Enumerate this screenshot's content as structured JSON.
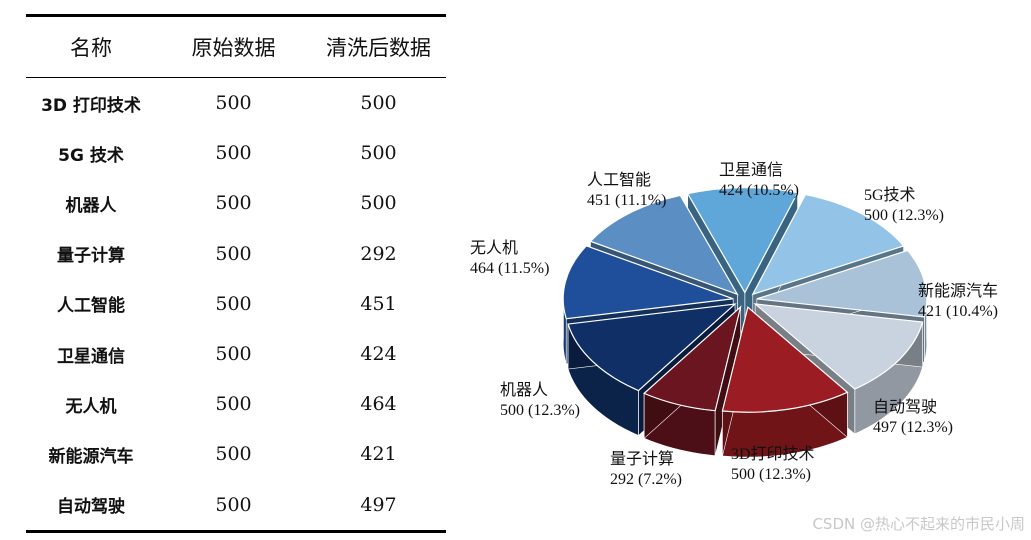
{
  "table": {
    "headers": [
      "名称",
      "原始数据",
      "清洗后数据"
    ],
    "rows": [
      [
        "3D 打印技术",
        "500",
        "500"
      ],
      [
        "5G 技术",
        "500",
        "500"
      ],
      [
        "机器人",
        "500",
        "500"
      ],
      [
        "量子计算",
        "500",
        "292"
      ],
      [
        "人工智能",
        "500",
        "451"
      ],
      [
        "卫星通信",
        "500",
        "424"
      ],
      [
        "无人机",
        "500",
        "464"
      ],
      [
        "新能源汽车",
        "500",
        "421"
      ],
      [
        "自动驾驶",
        "500",
        "497"
      ]
    ]
  },
  "chart_data": {
    "type": "pie",
    "style": "3d-exploded",
    "slices": [
      {
        "label": "3D打印技术",
        "value": 500,
        "pct": "12.3%",
        "color": "#9b1c22"
      },
      {
        "label": "自动驾驶",
        "value": 497,
        "pct": "12.3%",
        "color": "#c9d3e0"
      },
      {
        "label": "新能源汽车",
        "value": 421,
        "pct": "10.4%",
        "color": "#a9c2d8"
      },
      {
        "label": "5G技术",
        "value": 500,
        "pct": "12.3%",
        "color": "#93c3e6"
      },
      {
        "label": "卫星通信",
        "value": 424,
        "pct": "10.5%",
        "color": "#5ea7d8"
      },
      {
        "label": "人工智能",
        "value": 451,
        "pct": "11.1%",
        "color": "#5b8fc4"
      },
      {
        "label": "无人机",
        "value": 464,
        "pct": "11.5%",
        "color": "#1f4f9a"
      },
      {
        "label": "机器人",
        "value": 500,
        "pct": "12.3%",
        "color": "#0f2f66"
      },
      {
        "label": "量子计算",
        "value": 292,
        "pct": "7.2%",
        "color": "#6b1520"
      }
    ]
  },
  "pie_labels": [
    {
      "name": "3D打印技术",
      "text": "500 (12.3%)"
    },
    {
      "name": "自动驾驶",
      "text": "497 (12.3%)"
    },
    {
      "name": "新能源汽车",
      "text": "421 (10.4%)"
    },
    {
      "name": "5G技术",
      "text": "500 (12.3%)"
    },
    {
      "name": "卫星通信",
      "text": "424 (10.5%)"
    },
    {
      "name": "人工智能",
      "text": "451 (11.1%)"
    },
    {
      "name": "无人机",
      "text": "464 (11.5%)"
    },
    {
      "name": "机器人",
      "text": "500 (12.3%)"
    },
    {
      "name": "量子计算",
      "text": "292 (7.2%)"
    }
  ],
  "watermark": "CSDN @热心不起来的市民小周"
}
